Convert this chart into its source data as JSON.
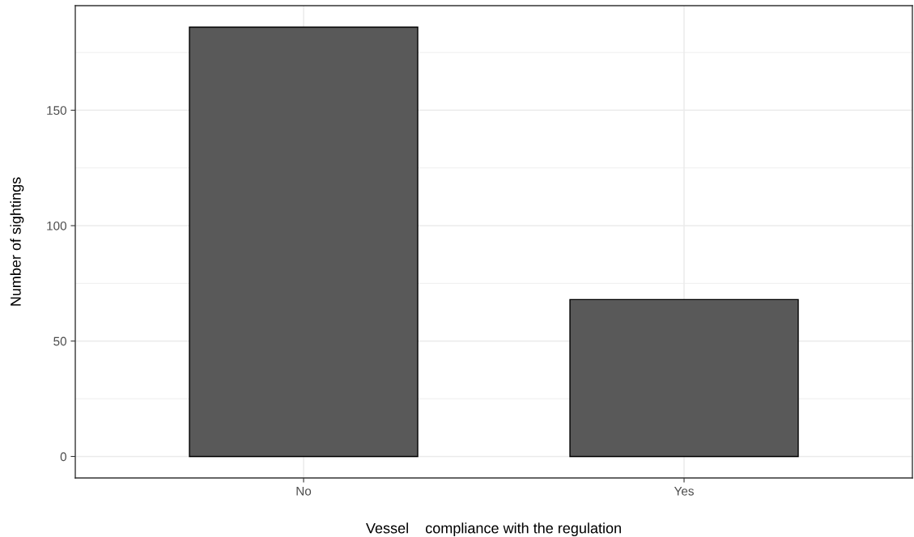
{
  "chart_data": {
    "type": "bar",
    "xlabel": "Vessel    compliance with the regulation",
    "ylabel": "Number of sightings",
    "categories": [
      "No",
      "Yes"
    ],
    "values": [
      186,
      68
    ],
    "color": "#595959",
    "ylim": [
      -9.3,
      195.3
    ],
    "yticks": [
      0,
      50,
      100,
      150
    ],
    "grid": true
  }
}
